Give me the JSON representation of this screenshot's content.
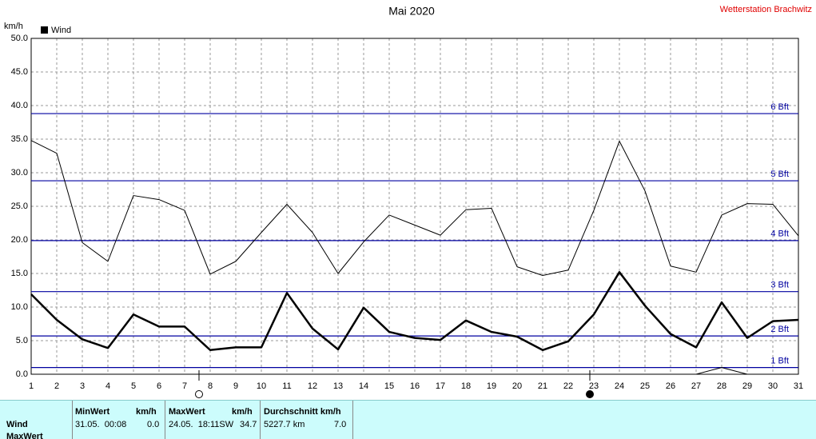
{
  "chart_data": {
    "type": "line",
    "title": "Mai 2020",
    "station": "Wetterstation Brachwitz",
    "y_label": "km/h",
    "x": [
      1,
      2,
      3,
      4,
      5,
      6,
      7,
      8,
      9,
      10,
      11,
      12,
      13,
      14,
      15,
      16,
      17,
      18,
      19,
      20,
      21,
      22,
      23,
      24,
      25,
      26,
      27,
      28,
      29,
      30,
      31
    ],
    "series": [
      {
        "name": "Wind",
        "color": "#000000",
        "width": 2.5,
        "values": [
          11.9,
          8.1,
          5.2,
          3.9,
          8.9,
          7.1,
          7.1,
          3.6,
          4.0,
          4.0,
          12.1,
          6.8,
          3.7,
          9.9,
          6.3,
          5.4,
          5.1,
          8.0,
          6.3,
          5.6,
          3.6,
          4.9,
          8.9,
          15.2,
          10.2,
          6.0,
          4.0,
          10.7,
          5.4,
          7.9,
          8.1
        ]
      },
      {
        "color": "#000000",
        "width": 1,
        "values": [
          34.8,
          32.9,
          19.6,
          16.8,
          26.6,
          26.0,
          24.4,
          14.9,
          16.8,
          21.1,
          25.3,
          21.1,
          15.0,
          19.7,
          23.7,
          22.2,
          20.7,
          24.5,
          24.7,
          16.0,
          14.7,
          15.5,
          24.4,
          34.7,
          27.3,
          16.1,
          15.2,
          23.7,
          25.4,
          25.3,
          20.6
        ]
      },
      {
        "color": "#000000",
        "width": 1,
        "values": [
          null,
          null,
          null,
          null,
          null,
          null,
          null,
          null,
          null,
          null,
          null,
          null,
          null,
          null,
          null,
          null,
          null,
          null,
          null,
          null,
          null,
          null,
          null,
          null,
          null,
          null,
          0.0,
          1.0,
          0.0,
          null,
          null
        ]
      }
    ],
    "xlim": [
      1,
      31
    ],
    "xticks": [
      1,
      2,
      3,
      4,
      5,
      6,
      7,
      8,
      9,
      10,
      11,
      12,
      13,
      14,
      15,
      16,
      17,
      18,
      19,
      20,
      21,
      22,
      23,
      24,
      25,
      26,
      27,
      28,
      29,
      30,
      31
    ],
    "ylim": [
      0,
      50
    ],
    "yticks": [
      {
        "value": 0,
        "label": "0.0"
      },
      {
        "value": 5,
        "label": "5.0"
      },
      {
        "value": 10,
        "label": "10.0"
      },
      {
        "value": 15,
        "label": "15.0"
      },
      {
        "value": 20,
        "label": "20.0"
      },
      {
        "value": 25,
        "label": "25.0"
      },
      {
        "value": 30,
        "label": "30.0"
      },
      {
        "value": 35,
        "label": "35.0"
      },
      {
        "value": 40,
        "label": "40.0"
      },
      {
        "value": 45,
        "label": "45.0"
      },
      {
        "value": 50,
        "label": "50.0"
      }
    ],
    "grid": true,
    "reference_lines": [
      {
        "value": 1,
        "label": "1 Bft"
      },
      {
        "value": 5.7,
        "label": "2 Bft"
      },
      {
        "value": 12.3,
        "label": "3 Bft"
      },
      {
        "value": 19.9,
        "label": "4 Bft"
      },
      {
        "value": 28.8,
        "label": "5 Bft"
      },
      {
        "value": 38.8,
        "label": "6 Bft"
      }
    ],
    "reference_color": "#0000a0"
  },
  "table": {
    "header": [
      "MinWert",
      "km/h",
      "MaxWert",
      "km/h",
      "Durchschnitt km/h"
    ],
    "rows": [
      [
        "Wind",
        "31.05.  00:08",
        "0.0",
        "24.05.  18:11SW",
        "34.7",
        "5227.7 km",
        "7.0"
      ],
      [
        "MaxWert"
      ]
    ]
  }
}
